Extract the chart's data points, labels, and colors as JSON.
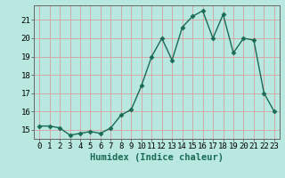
{
  "x": [
    0,
    1,
    2,
    3,
    4,
    5,
    6,
    7,
    8,
    9,
    10,
    11,
    12,
    13,
    14,
    15,
    16,
    17,
    18,
    19,
    20,
    21,
    22,
    23
  ],
  "y": [
    15.2,
    15.2,
    15.1,
    14.7,
    14.8,
    14.9,
    14.8,
    15.1,
    15.8,
    16.1,
    17.4,
    19.0,
    20.0,
    18.8,
    20.6,
    21.2,
    21.5,
    20.0,
    21.3,
    19.2,
    20.0,
    19.9,
    17.0,
    16.0
  ],
  "line_color": "#1a6b55",
  "marker": "D",
  "marker_size": 2.5,
  "bg_color": "#b8e8e0",
  "grid_color": "#d4a0a0",
  "xlabel": "Humidex (Indice chaleur)",
  "ylim": [
    14.5,
    21.8
  ],
  "xlim": [
    -0.5,
    23.5
  ],
  "yticks": [
    15,
    16,
    17,
    18,
    19,
    20,
    21
  ],
  "xticks": [
    0,
    1,
    2,
    3,
    4,
    5,
    6,
    7,
    8,
    9,
    10,
    11,
    12,
    13,
    14,
    15,
    16,
    17,
    18,
    19,
    20,
    21,
    22,
    23
  ],
  "tick_label_fontsize": 6.5,
  "xlabel_fontsize": 7.5,
  "line_width": 1.0
}
